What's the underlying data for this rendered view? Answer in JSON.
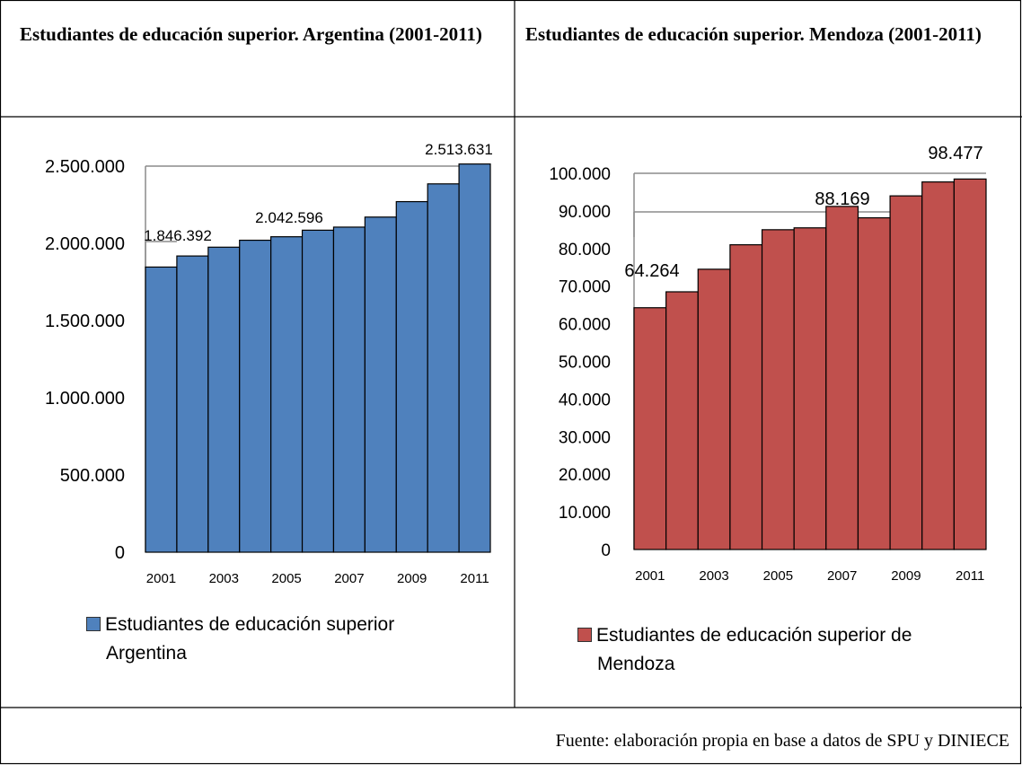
{
  "table": {
    "left_title": "Estudiantes de educación superior. Argentina (2001-2011)",
    "right_title": "Estudiantes de educación superior.  Mendoza (2001-2011)",
    "source": "Fuente: elaboración propia en base a datos de SPU y DINIECE"
  },
  "chart_data": [
    {
      "type": "bar",
      "categories": [
        "2001",
        "2002",
        "2003",
        "2004",
        "2005",
        "2006",
        "2007",
        "2008",
        "2009",
        "2010",
        "2011"
      ],
      "x_tick_labels": [
        "2001",
        "2003",
        "2005",
        "2007",
        "2009",
        "2011"
      ],
      "series": [
        {
          "name": "Estudiantes de educación superior Argentina",
          "values": [
            1846392,
            1918000,
            1975000,
            2020000,
            2042596,
            2085000,
            2105000,
            2170000,
            2270000,
            2385000,
            2513631
          ],
          "color": "#4f81bd"
        }
      ],
      "ylim": [
        0,
        2500000
      ],
      "y_ticks": [
        "0",
        "500.000",
        "1.000.000",
        "1.500.000",
        "2.000.000",
        "2.500.000"
      ],
      "data_labels": [
        {
          "category": "2001",
          "text": "1.846.392"
        },
        {
          "category": "2005",
          "text": "2.042.596"
        },
        {
          "category": "2011",
          "text": "2.513.631"
        }
      ],
      "legend": [
        "Estudiantes de educación superior",
        "Argentina"
      ],
      "legend_position": "bottom-left"
    },
    {
      "type": "bar",
      "categories": [
        "2001",
        "2002",
        "2003",
        "2004",
        "2005",
        "2006",
        "2007",
        "2008",
        "2009",
        "2010",
        "2011"
      ],
      "x_tick_labels": [
        "2001",
        "2003",
        "2005",
        "2007",
        "2009",
        "2011"
      ],
      "series": [
        {
          "name": "Estudiantes de educación superior de Mendoza",
          "values": [
            64264,
            68500,
            74500,
            81000,
            85000,
            85500,
            91200,
            88169,
            94000,
            97700,
            98477
          ],
          "color": "#c0504d"
        }
      ],
      "ylim": [
        0,
        100000
      ],
      "y_ticks": [
        "0",
        "10.000",
        "20.000",
        "30.000",
        "40.000",
        "50.000",
        "60.000",
        "70.000",
        "80.000",
        "90.000",
        "100.000"
      ],
      "data_labels": [
        {
          "category": "2001",
          "text": "64.264"
        },
        {
          "category": "2008",
          "text": "88.169"
        },
        {
          "category": "2011",
          "text": "98.477"
        }
      ],
      "legend": [
        "Estudiantes de educación superior de",
        "Mendoza"
      ],
      "legend_position": "bottom-left"
    }
  ]
}
